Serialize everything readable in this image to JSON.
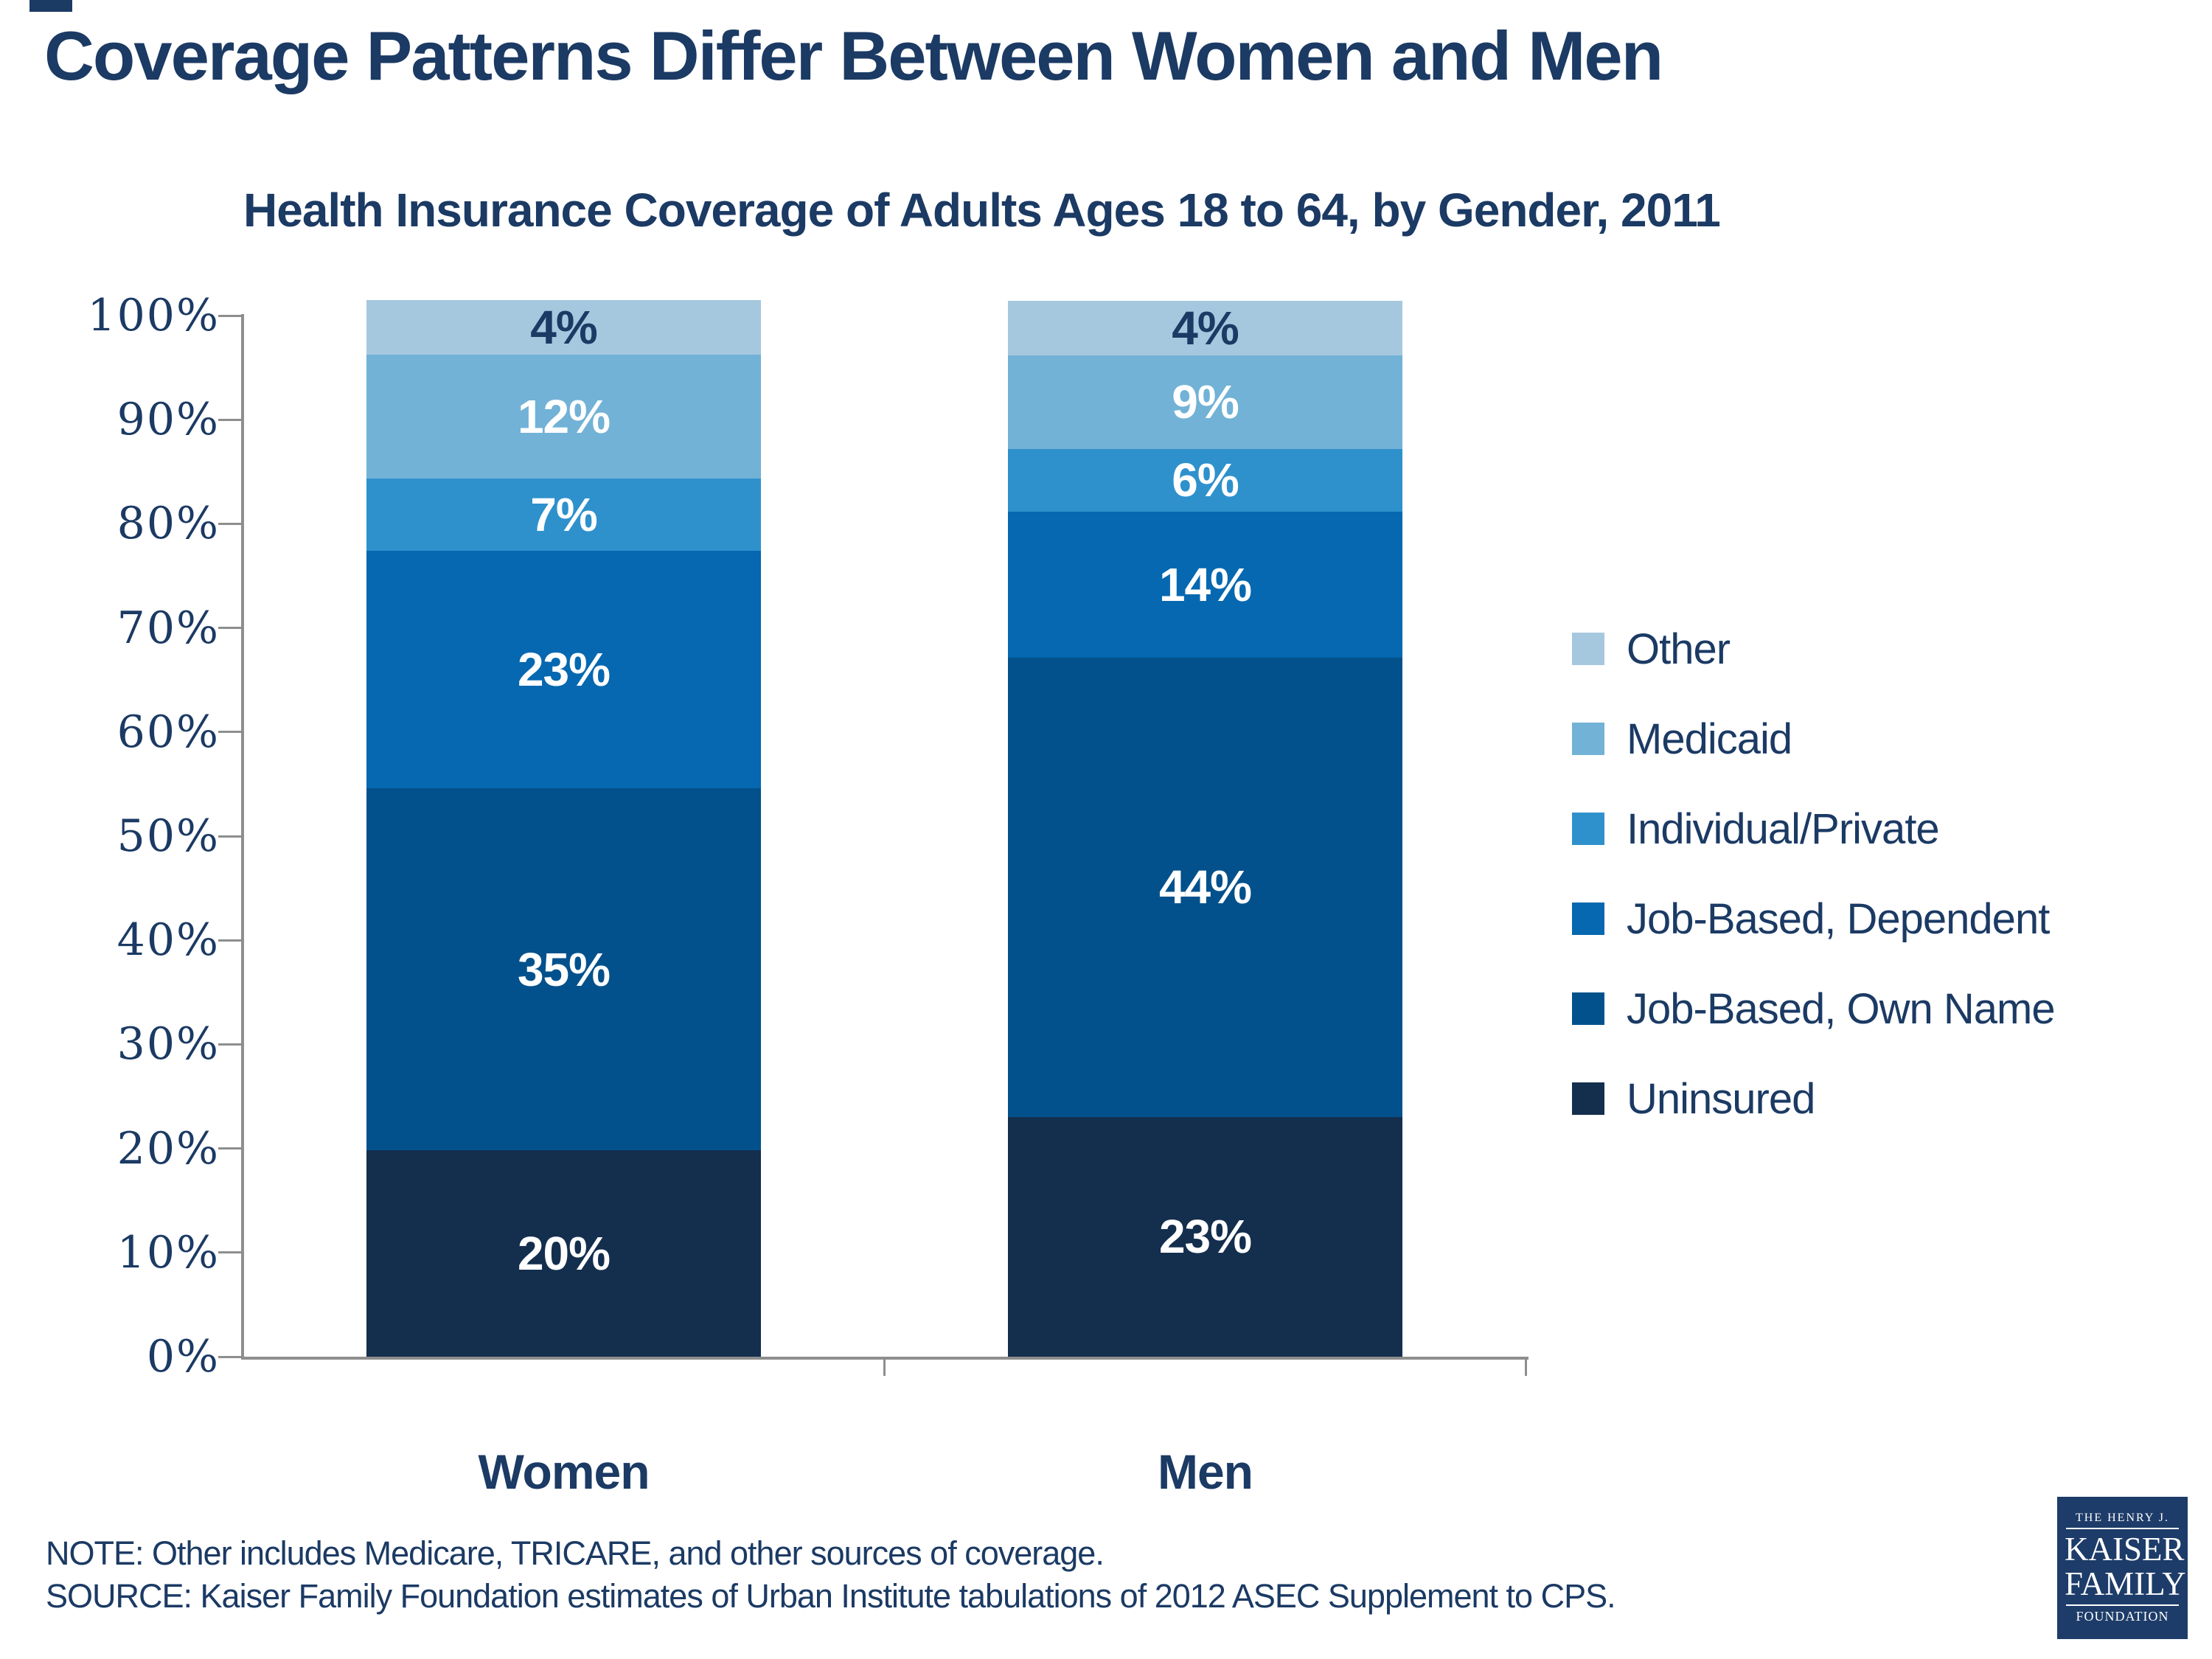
{
  "slide": {
    "title": "Coverage Patterns Differ Between Women and Men",
    "note_line1": "NOTE:  Other includes Medicare, TRICARE, and other sources of coverage.",
    "note_line2": "SOURCE:  Kaiser Family Foundation estimates of Urban Institute tabulations of 2012 ASEC Supplement to CPS.",
    "logo": {
      "line1": "THE HENRY J.",
      "line2": "KAISER",
      "line3": "FAMILY",
      "line4": "FOUNDATION"
    }
  },
  "chart_data": {
    "type": "bar",
    "stacked": true,
    "title": "Health Insurance Coverage of Adults Ages 18 to 64, by Gender, 2011",
    "categories": [
      "Women",
      "Men"
    ],
    "series": [
      {
        "name": "Uninsured",
        "color": "#142e4e",
        "label_color": "#ffffff",
        "values": [
          20,
          23
        ]
      },
      {
        "name": "Job-Based, Own Name",
        "color": "#02518c",
        "label_color": "#ffffff",
        "values": [
          35,
          44
        ]
      },
      {
        "name": "Job-Based, Dependent",
        "color": "#0568b0",
        "label_color": "#ffffff",
        "values": [
          23,
          14
        ]
      },
      {
        "name": "Individual/Private",
        "color": "#2e91cc",
        "label_color": "#ffffff",
        "values": [
          7,
          6
        ]
      },
      {
        "name": "Medicaid",
        "color": "#72b2d6",
        "label_color": "#ffffff",
        "values": [
          12,
          9
        ]
      },
      {
        "name": "Other",
        "color": "#a5c8df",
        "label_color": "#1b3a64",
        "values": [
          4,
          4
        ]
      }
    ],
    "value_suffix": "%",
    "y_ticks": [
      "100%",
      "90%",
      "80%",
      "70%",
      "60%",
      "50%",
      "40%",
      "30%",
      "20%",
      "10%",
      "0%"
    ],
    "ylim": [
      0,
      100
    ],
    "grid": false,
    "legend_position": "right",
    "legend_order": [
      "Other",
      "Medicaid",
      "Individual/Private",
      "Job-Based, Dependent",
      "Job-Based, Own Name",
      "Uninsured"
    ]
  }
}
